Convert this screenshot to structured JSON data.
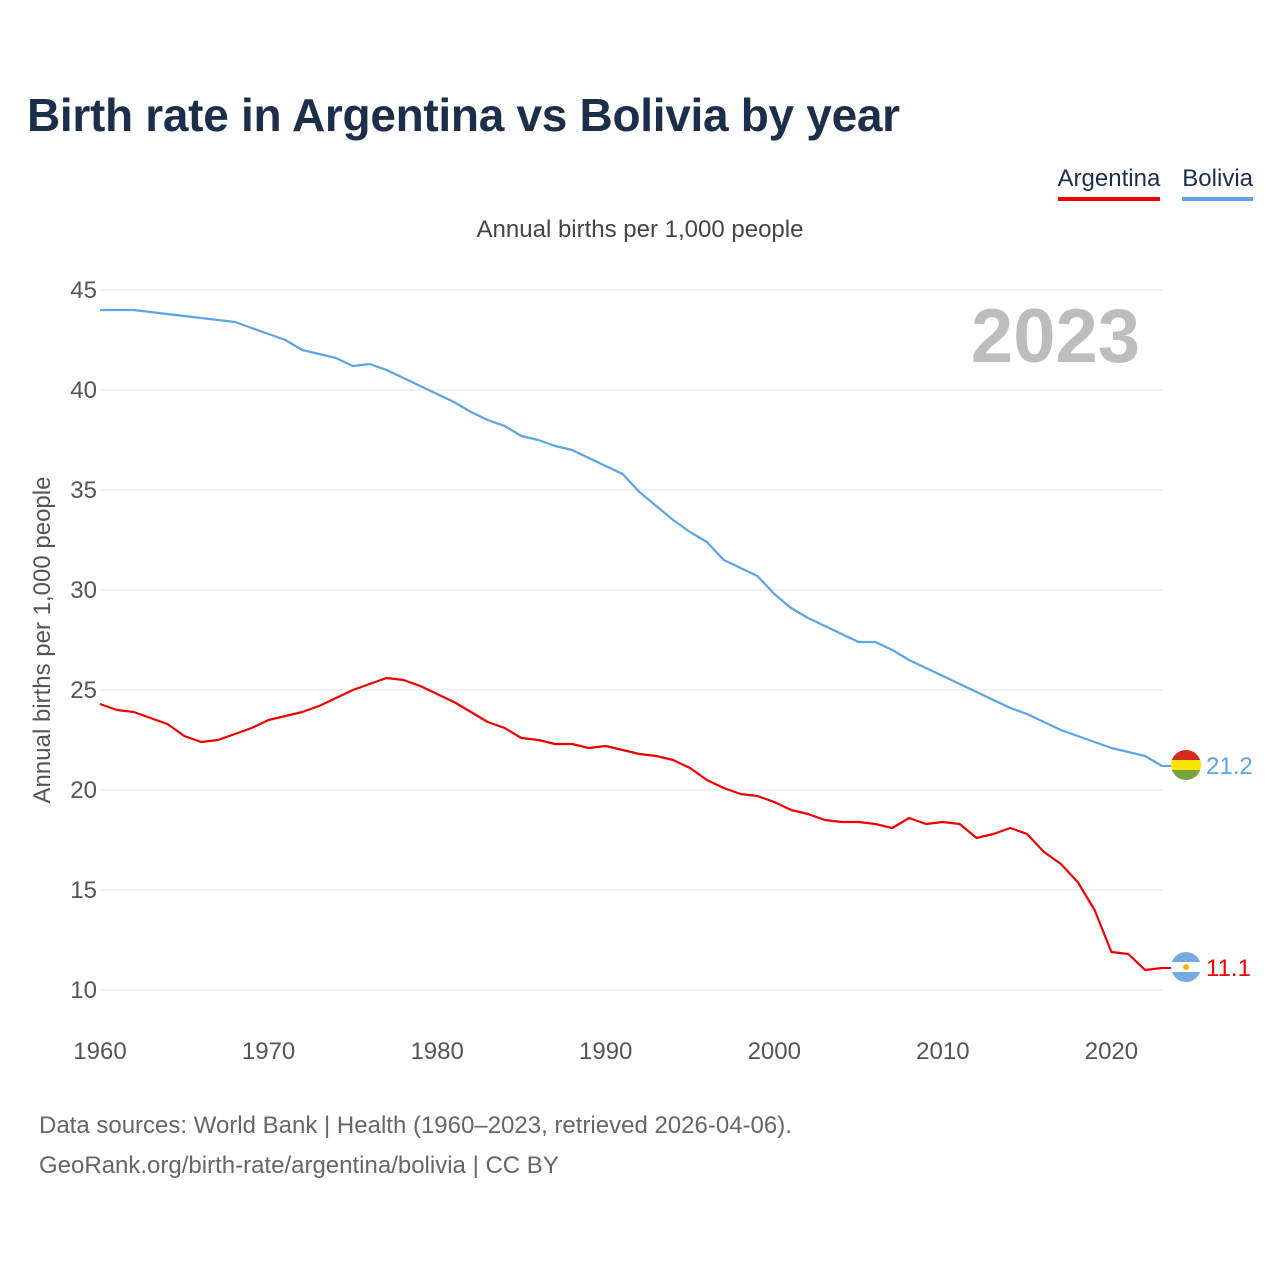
{
  "title": "Birth rate in Argentina vs Bolivia by year",
  "subtitle": "Annual births per 1,000 people",
  "year_label": "2023",
  "legend": [
    {
      "name": "Argentina",
      "color": "#ee0000"
    },
    {
      "name": "Bolivia",
      "color": "#5ba4e5"
    }
  ],
  "footer": {
    "line1": "Data sources: World Bank | Health (1960–2023, retrieved 2026-04-06).",
    "line2": "GeoRank.org/birth-rate/argentina/bolivia | CC BY"
  },
  "chart_data": {
    "type": "line",
    "title": "Birth rate in Argentina vs Bolivia by year",
    "xlabel": "",
    "ylabel": "Annual births per 1,000 people",
    "xlim": [
      1960,
      2023
    ],
    "ylim": [
      10,
      45
    ],
    "x_ticks": [
      1960,
      1970,
      1980,
      1990,
      2000,
      2010,
      2020
    ],
    "y_ticks": [
      10,
      15,
      20,
      25,
      30,
      35,
      40,
      45
    ],
    "grid": true,
    "legend_position": "top-right",
    "x": [
      1960,
      1961,
      1962,
      1963,
      1964,
      1965,
      1966,
      1967,
      1968,
      1969,
      1970,
      1971,
      1972,
      1973,
      1974,
      1975,
      1976,
      1977,
      1978,
      1979,
      1980,
      1981,
      1982,
      1983,
      1984,
      1985,
      1986,
      1987,
      1988,
      1989,
      1990,
      1991,
      1992,
      1993,
      1994,
      1995,
      1996,
      1997,
      1998,
      1999,
      2000,
      2001,
      2002,
      2003,
      2004,
      2005,
      2006,
      2007,
      2008,
      2009,
      2010,
      2011,
      2012,
      2013,
      2014,
      2015,
      2016,
      2017,
      2018,
      2019,
      2020,
      2021,
      2022,
      2023
    ],
    "series": [
      {
        "name": "Argentina",
        "color": "#ee0000",
        "end_label": "11.1",
        "values": [
          24.3,
          24.0,
          23.9,
          23.6,
          23.3,
          22.7,
          22.4,
          22.5,
          22.8,
          23.1,
          23.5,
          23.7,
          23.9,
          24.2,
          24.6,
          25.0,
          25.3,
          25.6,
          25.5,
          25.2,
          24.8,
          24.4,
          23.9,
          23.4,
          23.1,
          22.6,
          22.5,
          22.3,
          22.3,
          22.1,
          22.2,
          22.0,
          21.8,
          21.7,
          21.5,
          21.1,
          20.5,
          20.1,
          19.8,
          19.7,
          19.4,
          19.0,
          18.8,
          18.5,
          18.4,
          18.4,
          18.3,
          18.1,
          18.6,
          18.3,
          18.4,
          18.3,
          17.6,
          17.8,
          18.1,
          17.8,
          16.9,
          16.3,
          15.4,
          14.0,
          11.9,
          11.8,
          11.0,
          11.1
        ]
      },
      {
        "name": "Bolivia",
        "color": "#5ba4e5",
        "end_label": "21.2",
        "values": [
          44.0,
          44.0,
          44.0,
          43.9,
          43.8,
          43.7,
          43.6,
          43.5,
          43.4,
          43.1,
          42.8,
          42.5,
          42.0,
          41.8,
          41.6,
          41.2,
          41.3,
          41.0,
          40.6,
          40.2,
          39.8,
          39.4,
          38.9,
          38.5,
          38.2,
          37.7,
          37.5,
          37.2,
          37.0,
          36.6,
          36.2,
          35.8,
          34.9,
          34.2,
          33.5,
          32.9,
          32.4,
          31.5,
          31.1,
          30.7,
          29.8,
          29.1,
          28.6,
          28.2,
          27.8,
          27.4,
          27.4,
          27.0,
          26.5,
          26.1,
          25.7,
          25.3,
          24.9,
          24.5,
          24.1,
          23.8,
          23.4,
          23.0,
          22.7,
          22.4,
          22.1,
          21.9,
          21.7,
          21.2
        ]
      }
    ]
  }
}
